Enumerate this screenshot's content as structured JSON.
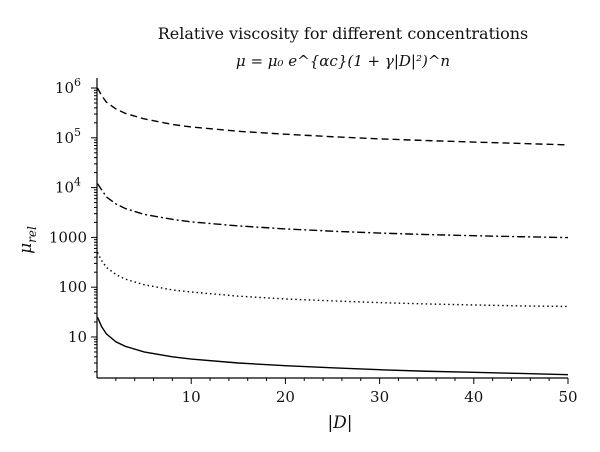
{
  "chart_data": {
    "type": "line",
    "title": "Relative viscosity for different concentrations",
    "subtitle": "μ = μ₀ e^{αc}(1 + γ|D|²)^n",
    "xlabel": "|D|",
    "ylabel": "μ_rel",
    "xlim": [
      0,
      50
    ],
    "ylim": [
      1.5,
      1000000
    ],
    "yscale": "log",
    "grid": false,
    "x_ticks": [
      10,
      20,
      30,
      40,
      50
    ],
    "y_ticks": [
      {
        "value": 10,
        "label": "10",
        "sup": ""
      },
      {
        "value": 100,
        "label": "100",
        "sup": ""
      },
      {
        "value": 1000,
        "label": "1000",
        "sup": ""
      },
      {
        "value": 10000,
        "label": "10",
        "sup": "4"
      },
      {
        "value": 100000,
        "label": "10",
        "sup": "5"
      },
      {
        "value": 1000000,
        "label": "10",
        "sup": "6"
      }
    ],
    "series": [
      {
        "style": "dashed",
        "x": [
          0.05,
          0.5,
          1,
          2,
          3,
          5,
          8,
          10,
          15,
          20,
          25,
          30,
          35,
          40,
          45,
          50
        ],
        "values": [
          1000000,
          700000,
          520000,
          380000,
          310000,
          240000,
          185000,
          165000,
          135000,
          118000,
          105000,
          95000,
          88000,
          82000,
          77000,
          72000
        ]
      },
      {
        "style": "dashdot",
        "x": [
          0.05,
          0.5,
          1,
          2,
          3,
          5,
          8,
          10,
          15,
          20,
          25,
          30,
          35,
          40,
          45,
          50
        ],
        "values": [
          12000,
          9000,
          6500,
          4700,
          3800,
          2900,
          2300,
          2050,
          1700,
          1480,
          1330,
          1220,
          1140,
          1080,
          1030,
          990
        ]
      },
      {
        "style": "dotted",
        "x": [
          0.05,
          0.5,
          1,
          2,
          3,
          5,
          8,
          10,
          15,
          20,
          25,
          30,
          35,
          40,
          45,
          50
        ],
        "values": [
          500,
          340,
          250,
          180,
          145,
          112,
          88,
          80,
          66,
          58,
          53,
          49,
          46,
          44,
          42,
          41
        ]
      },
      {
        "style": "solid",
        "x": [
          0.05,
          0.5,
          1,
          2,
          3,
          5,
          8,
          10,
          15,
          20,
          25,
          30,
          35,
          40,
          45,
          50
        ],
        "values": [
          25,
          16,
          11.5,
          8,
          6.5,
          5,
          4,
          3.6,
          3.0,
          2.65,
          2.4,
          2.2,
          2.05,
          1.95,
          1.85,
          1.75
        ]
      }
    ]
  }
}
